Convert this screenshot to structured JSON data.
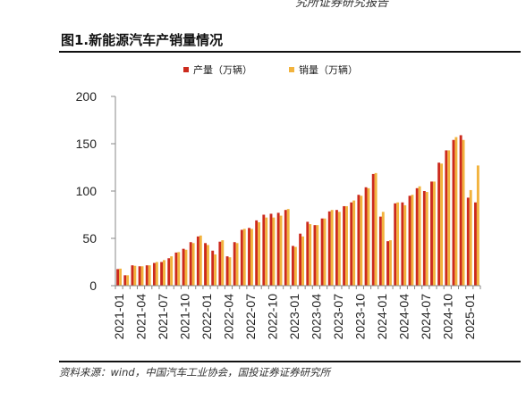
{
  "header_fragment": "究所证券研究报告",
  "figure_title": "图1.新能源汽车产销量情况",
  "source_note": "资料来源：wind，中国汽车工业协会，国投证券证券研究所",
  "colors": {
    "production": "#cc2a1d",
    "sales": "#f2b33d"
  },
  "chart_data": {
    "type": "bar",
    "legend": [
      {
        "name": "产量（万辆）",
        "color": "#cc2a1d"
      },
      {
        "name": "销量（万辆）",
        "color": "#f2b33d"
      }
    ],
    "legend_position": "top-center",
    "ylim": [
      0,
      200
    ],
    "yticks": [
      0,
      50,
      100,
      150,
      200
    ],
    "xtick_labels": [
      "2021-01",
      "2021-04",
      "2021-07",
      "2021-10",
      "2022-01",
      "2022-04",
      "2022-07",
      "2022-10",
      "2023-01",
      "2023-04",
      "2023-07",
      "2023-10",
      "2024-01",
      "2024-04",
      "2024-07",
      "2024-10",
      "2025-01"
    ],
    "grid": false,
    "categories": [
      "2021-01",
      "2021-02",
      "2021-03",
      "2021-04",
      "2021-05",
      "2021-06",
      "2021-07",
      "2021-08",
      "2021-09",
      "2021-10",
      "2021-11",
      "2021-12",
      "2022-01",
      "2022-02",
      "2022-03",
      "2022-04",
      "2022-05",
      "2022-06",
      "2022-07",
      "2022-08",
      "2022-09",
      "2022-10",
      "2022-11",
      "2022-12",
      "2023-01",
      "2023-02",
      "2023-03",
      "2023-04",
      "2023-05",
      "2023-06",
      "2023-07",
      "2023-08",
      "2023-09",
      "2023-10",
      "2023-11",
      "2023-12",
      "2024-01",
      "2024-02",
      "2024-03",
      "2024-04",
      "2024-05",
      "2024-06",
      "2024-07",
      "2024-08",
      "2024-09",
      "2024-10",
      "2024-11",
      "2024-12",
      "2025-01",
      "2025-02"
    ],
    "series": [
      {
        "name": "产量（万辆）",
        "values": [
          17.5,
          11,
          21.5,
          20.5,
          21.5,
          24,
          25,
          29,
          35,
          39,
          46,
          52,
          45,
          37,
          46.5,
          31,
          46,
          59,
          61,
          69,
          75,
          76,
          77,
          80,
          42,
          55,
          67.5,
          64,
          71,
          78.5,
          80,
          84,
          88,
          96,
          104,
          118,
          73,
          47,
          87,
          88,
          95,
          103,
          100,
          110,
          130,
          143,
          154,
          159,
          93,
          88
        ]
      },
      {
        "name": "销量（万辆）",
        "values": [
          18,
          11,
          21,
          20.5,
          21.5,
          25,
          27,
          31,
          35.5,
          38,
          45,
          53,
          43,
          33,
          48,
          30,
          45,
          60,
          60,
          67,
          72,
          72,
          74,
          81,
          41,
          52,
          65,
          64,
          71,
          80,
          78,
          84,
          90,
          95,
          103,
          119,
          78,
          48,
          88,
          85,
          96,
          105,
          99,
          110,
          129,
          143,
          157,
          154,
          101,
          127
        ]
      }
    ]
  }
}
